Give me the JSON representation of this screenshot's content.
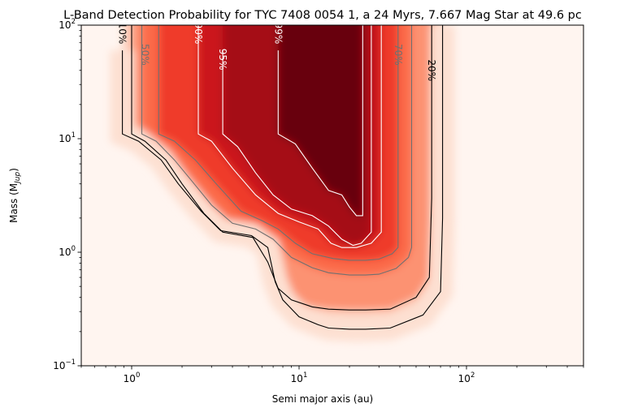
{
  "chart_data": {
    "type": "heatmap",
    "title": "L-Band Detection Probability for TYC 7408 0054 1, a 24 Myrs, 7.667 Mag Star at 49.6 pc",
    "xlabel": "Semi major axis (au)",
    "ylabel_main": "Mass (M",
    "ylabel_sub": "Jup",
    "ylabel_close": ")",
    "x_scale": "log",
    "y_scale": "log",
    "xlim": [
      0.5,
      500
    ],
    "ylim": [
      0.1,
      100
    ],
    "x_ticks": [
      {
        "value": 1,
        "base": "10",
        "exp": "0"
      },
      {
        "value": 10,
        "base": "10",
        "exp": "1"
      },
      {
        "value": 100,
        "base": "10",
        "exp": "2"
      }
    ],
    "y_ticks": [
      {
        "value": 0.1,
        "base": "10",
        "exp": "−1"
      },
      {
        "value": 1,
        "base": "10",
        "exp": "0"
      },
      {
        "value": 10,
        "base": "10",
        "exp": "1"
      },
      {
        "value": 100,
        "base": "10",
        "exp": "2"
      }
    ],
    "colormap": "Reds",
    "colorscale_stops": [
      "#fff5f0",
      "#fdd2bf",
      "#fc9272",
      "#fb6a4a",
      "#ef3b2c",
      "#cb181d",
      "#a50f15",
      "#67000d"
    ],
    "contours": [
      {
        "level": 10,
        "label": "10%",
        "color": "#000000",
        "x": [
          0.88,
          0.88,
          1.1,
          1.5,
          1.9,
          2.6,
          3.4,
          5.2,
          6.5,
          7.2,
          8.0,
          10,
          13,
          15,
          20,
          25,
          35,
          55,
          70,
          72,
          72
        ],
        "y": [
          60,
          11,
          9.5,
          6.5,
          4.0,
          2.3,
          1.55,
          1.4,
          1.1,
          0.55,
          0.38,
          0.27,
          0.23,
          0.215,
          0.21,
          0.21,
          0.215,
          0.28,
          0.45,
          2,
          100
        ],
        "label_x": 0.88,
        "label_y": 85
      },
      {
        "level": 20,
        "label": "20%",
        "color": "#000000",
        "x": [
          1.0,
          1.0,
          1.2,
          1.6,
          2.0,
          2.7,
          3.5,
          5.3,
          6.5,
          7.5,
          9,
          12,
          15,
          20,
          25,
          35,
          50,
          60,
          62,
          62
        ],
        "y": [
          100,
          11,
          9.5,
          6.5,
          4.0,
          2.2,
          1.5,
          1.35,
          0.82,
          0.48,
          0.38,
          0.33,
          0.315,
          0.31,
          0.31,
          0.315,
          0.4,
          0.6,
          3,
          100
        ],
        "label_x": 62,
        "label_y": 40
      },
      {
        "level": 50,
        "label": "50%",
        "color": "#707070",
        "x": [
          1.15,
          1.15,
          1.4,
          1.8,
          2.3,
          3.0,
          4.0,
          5.5,
          7.0,
          9,
          12,
          15,
          20,
          25,
          30,
          38,
          45,
          47,
          47
        ],
        "y": [
          100,
          11,
          9.5,
          6.5,
          4.2,
          2.6,
          1.8,
          1.6,
          1.3,
          0.9,
          0.73,
          0.66,
          0.63,
          0.63,
          0.64,
          0.72,
          0.9,
          1.1,
          100
        ],
        "label_x": 1.2,
        "label_y": 55
      },
      {
        "level": 70,
        "label": "70%",
        "color": "#707070",
        "x": [
          1.45,
          1.45,
          1.8,
          2.4,
          3.2,
          4.5,
          6.0,
          7.5,
          9.5,
          12,
          16,
          20,
          25,
          30,
          36,
          39,
          39
        ],
        "y": [
          100,
          11,
          9.5,
          6.5,
          4.0,
          2.3,
          1.9,
          1.6,
          1.2,
          0.97,
          0.88,
          0.85,
          0.85,
          0.87,
          0.97,
          1.1,
          100
        ],
        "label_x": 39,
        "label_y": 55
      },
      {
        "level": 90,
        "label": "90%",
        "color": "#ffffff",
        "x": [
          2.5,
          2.5,
          3.0,
          4.0,
          5.5,
          7.5,
          10,
          13,
          15.5,
          18,
          22,
          27,
          31,
          31
        ],
        "y": [
          100,
          11,
          9.5,
          5.5,
          3.2,
          2.2,
          1.85,
          1.6,
          1.2,
          1.1,
          1.1,
          1.2,
          1.5,
          100
        ],
        "label_x": 2.5,
        "label_y": 85
      },
      {
        "level": 95,
        "label": "95%",
        "color": "#ffffff",
        "x": [
          3.5,
          3.5,
          4.3,
          5.5,
          7.0,
          9.0,
          12,
          15,
          18,
          21,
          23.5,
          27,
          27
        ],
        "y": [
          60,
          11,
          8.5,
          5.0,
          3.2,
          2.4,
          2.1,
          1.7,
          1.3,
          1.15,
          1.2,
          1.5,
          100
        ],
        "label_x": 3.5,
        "label_y": 50
      },
      {
        "level": 99,
        "label": "99%",
        "color": "#ffffff",
        "x": [
          7.5,
          7.5,
          9.5,
          12,
          15,
          18,
          20,
          22,
          24,
          24
        ],
        "y": [
          60,
          11,
          9,
          5.5,
          3.5,
          3.2,
          2.5,
          2.1,
          2.1,
          100
        ],
        "label_x": 7.5,
        "label_y": 85
      }
    ]
  }
}
